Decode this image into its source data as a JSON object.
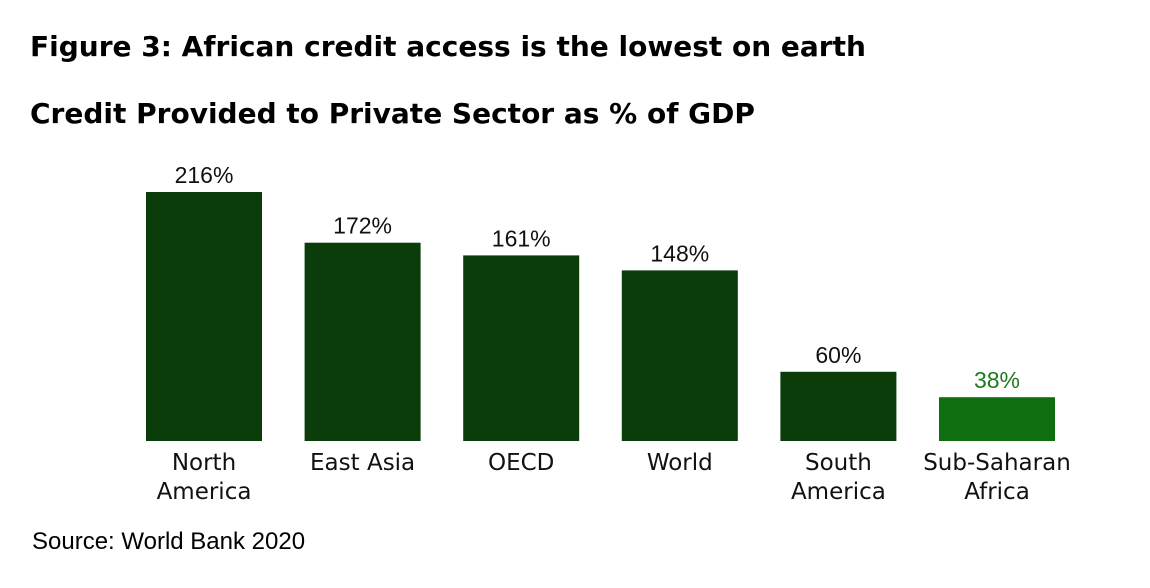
{
  "figure_title": "Figure 3: African credit access is the lowest on earth",
  "source": "Source: World Bank 2020",
  "colors": {
    "bar_default": "#0a3d0a",
    "bar_highlight": "#0f6e0f",
    "label_default": "#111111",
    "label_highlight": "#1f7a1f"
  },
  "chart_data": {
    "type": "bar",
    "title": "Credit Provided to Private Sector as % of GDP",
    "categories": [
      [
        "North",
        "America"
      ],
      [
        "East Asia"
      ],
      [
        "OECD"
      ],
      [
        "World"
      ],
      [
        "South",
        "America"
      ],
      [
        "Sub-Saharan",
        "Africa"
      ]
    ],
    "values": [
      216,
      172,
      161,
      148,
      60,
      38
    ],
    "value_labels": [
      "216%",
      "172%",
      "161%",
      "148%",
      "60%",
      "38%"
    ],
    "highlight_index": 5,
    "ylim": [
      0,
      216
    ],
    "xlabel": "",
    "ylabel": "",
    "grid": false,
    "legend": "none"
  }
}
